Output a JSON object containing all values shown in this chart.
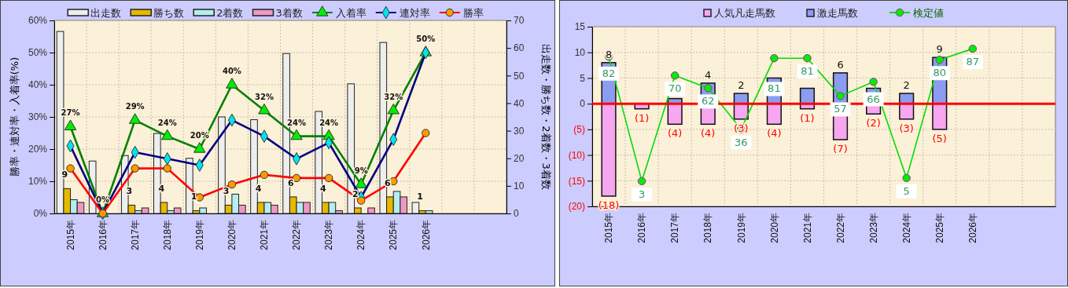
{
  "chart_data": [
    {
      "type": "bar",
      "categories": [
        "2015年",
        "2016年",
        "2017年",
        "2018年",
        "2019年",
        "2020年",
        "2021年",
        "2022年",
        "2023年",
        "2024年",
        "2025年",
        "2026年",
        null,
        null
      ],
      "ylabel": "勝率・連対率・入着率(%)",
      "y2label": "出走数・勝ち数・2着数・3着数",
      "ylim": [
        0,
        60
      ],
      "yticks": [
        {
          "value": 0,
          "label": "0%"
        },
        {
          "value": 10,
          "label": "10%"
        },
        {
          "value": 20,
          "label": "20%"
        },
        {
          "value": 30,
          "label": "30%"
        },
        {
          "value": 40,
          "label": "40%"
        },
        {
          "value": 50,
          "label": "50%"
        },
        {
          "value": 60,
          "label": "60%"
        }
      ],
      "y2lim": [
        0,
        70
      ],
      "y2ticks": [
        0,
        10,
        20,
        30,
        40,
        50,
        60,
        70
      ],
      "grid": true,
      "legend": "top",
      "series": [
        {
          "name": "出走数",
          "color": "#eeeeee",
          "axis": "y2",
          "values": [
            66,
            19,
            21,
            29,
            20,
            35,
            34,
            58,
            37,
            47,
            62,
            4,
            null,
            null
          ]
        },
        {
          "name": "勝ち数",
          "color": "#e6b800",
          "axis": "y2",
          "values": [
            9,
            0,
            3,
            4,
            1,
            3,
            4,
            6,
            4,
            2,
            6,
            1,
            null,
            null
          ],
          "value_labels": [
            "9",
            null,
            "3",
            "4",
            "1",
            "3",
            "4",
            "6",
            "4",
            "2",
            "6",
            "1",
            null,
            null
          ]
        },
        {
          "name": "2着数",
          "color": "#b4eeee",
          "axis": "y2",
          "values": [
            5,
            0,
            1,
            1,
            2,
            7,
            4,
            4,
            4,
            0,
            8,
            1,
            null,
            null
          ]
        },
        {
          "name": "3着数",
          "color": "#ee99c4",
          "axis": "y2",
          "values": [
            4,
            0,
            2,
            2,
            0,
            3,
            3,
            4,
            1,
            2,
            6,
            0,
            null,
            null
          ]
        },
        {
          "name": "入着率",
          "type": "line",
          "color": "#008000",
          "marker": "triangle",
          "axis": "y",
          "values": [
            27,
            0,
            29,
            24,
            20,
            40,
            32,
            24,
            24,
            9,
            32,
            50,
            null,
            null
          ],
          "value_labels": [
            "27%",
            "0%",
            "29%",
            "24%",
            "20%",
            "40%",
            "32%",
            "24%",
            "24%",
            "9%",
            "32%",
            "50%",
            null,
            null
          ]
        },
        {
          "name": "連対率",
          "type": "line",
          "color": "#000080",
          "marker": "diamond",
          "axis": "y",
          "values": [
            21,
            0,
            19,
            17,
            15,
            29,
            24,
            17,
            22,
            5,
            23,
            50,
            null,
            null
          ]
        },
        {
          "name": "勝率",
          "type": "line",
          "color": "#ff0000",
          "marker": "circle",
          "axis": "y",
          "values": [
            14,
            0,
            14,
            14,
            5,
            9,
            12,
            11,
            11,
            4,
            10,
            25,
            null,
            null
          ]
        }
      ]
    },
    {
      "type": "bar",
      "stacked": true,
      "categories": [
        "2015年",
        "2016年",
        "2017年",
        "2018年",
        "2019年",
        "2020年",
        "2021年",
        "2022年",
        "2023年",
        "2024年",
        "2025年",
        "2026年",
        null,
        null
      ],
      "ylim": [
        -20,
        15
      ],
      "yticks": [
        {
          "value": -20,
          "label": "(20)"
        },
        {
          "value": -15,
          "label": "(15)"
        },
        {
          "value": -10,
          "label": "(10)"
        },
        {
          "value": -5,
          "label": "(5)"
        },
        0,
        5,
        10,
        15
      ],
      "y2lim": [
        -13,
        101
      ],
      "grid": true,
      "legend": "top",
      "ref_lines": [
        {
          "axis": "y",
          "value": 0,
          "color": "#ff0000"
        }
      ],
      "series": [
        {
          "name": "人気凡走馬数",
          "color": "#f7a6f0",
          "axis": "y",
          "values": [
            -18,
            -1,
            -4,
            -4,
            -3,
            -4,
            -1,
            -7,
            -2,
            -3,
            -5,
            null,
            null,
            null
          ],
          "value_labels": [
            "(18)",
            "(1)",
            "(4)",
            "(4)",
            "(3)",
            "(4)",
            "(1)",
            "(7)",
            "(2)",
            "(3)",
            "(5)",
            null,
            null,
            null
          ]
        },
        {
          "name": "激走馬数",
          "color": "#8c9cf0",
          "axis": "y",
          "values": [
            8,
            0,
            1,
            4,
            2,
            5,
            3,
            6,
            3,
            2,
            9,
            null,
            null,
            null
          ],
          "value_labels": [
            "8",
            null,
            null,
            "4",
            "2",
            null,
            null,
            "6",
            null,
            "2",
            "9",
            null,
            null,
            null
          ]
        },
        {
          "name": "検定値",
          "type": "line",
          "color": "#00dd00",
          "marker": "circle",
          "axis": "y2",
          "values": [
            82,
            3,
            70,
            62,
            36,
            81,
            81,
            57,
            66,
            5,
            80,
            87,
            null,
            null
          ],
          "value_labels": [
            "82",
            "3",
            "70",
            "62",
            "36",
            "81",
            "81",
            "57",
            "66",
            "5",
            "80",
            "87",
            null,
            null
          ]
        }
      ]
    }
  ]
}
